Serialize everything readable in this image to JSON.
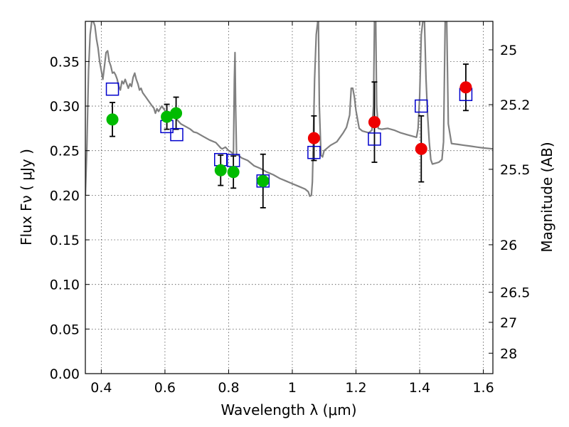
{
  "chart_data": {
    "type": "scatter",
    "title": "",
    "xlabel": "Wavelength  λ (μm)",
    "ylabel": "Flux  Fν  ( μJy )",
    "y2label": "Magnitude (AB)",
    "xlim": [
      0.35,
      1.63
    ],
    "ylim": [
      0.0,
      0.395
    ],
    "grid": true,
    "x_ticks": [
      {
        "value": 0.4,
        "label": "0.4"
      },
      {
        "value": 0.6,
        "label": "0.6"
      },
      {
        "value": 0.8,
        "label": "0.8"
      },
      {
        "value": 1.0,
        "label": "1"
      },
      {
        "value": 1.2,
        "label": "1.2"
      },
      {
        "value": 1.4,
        "label": "1.4"
      },
      {
        "value": 1.6,
        "label": "1.6"
      }
    ],
    "y_ticks": [
      {
        "value": 0.0,
        "label": "0.00"
      },
      {
        "value": 0.05,
        "label": "0.05"
      },
      {
        "value": 0.1,
        "label": "0.10"
      },
      {
        "value": 0.15,
        "label": "0.15"
      },
      {
        "value": 0.2,
        "label": "0.20"
      },
      {
        "value": 0.25,
        "label": "0.25"
      },
      {
        "value": 0.3,
        "label": "0.30"
      },
      {
        "value": 0.35,
        "label": "0.35"
      }
    ],
    "y2_ticks": [
      {
        "flux": 0.3631,
        "label": "25"
      },
      {
        "flux": 0.3016,
        "label": "25.2"
      },
      {
        "flux": 0.2291,
        "label": "25.5"
      },
      {
        "flux": 0.1445,
        "label": "26"
      },
      {
        "flux": 0.0912,
        "label": "26.5"
      },
      {
        "flux": 0.0575,
        "label": "27"
      },
      {
        "flux": 0.0229,
        "label": "28"
      }
    ],
    "series": [
      {
        "kind": "line",
        "color": "#808080",
        "points": [
          [
            0.35,
            0.2
          ],
          [
            0.355,
            0.255
          ],
          [
            0.36,
            0.34
          ],
          [
            0.365,
            0.38
          ],
          [
            0.37,
            0.395
          ],
          [
            0.375,
            0.395
          ],
          [
            0.38,
            0.39
          ],
          [
            0.385,
            0.375
          ],
          [
            0.39,
            0.365
          ],
          [
            0.395,
            0.35
          ],
          [
            0.4,
            0.34
          ],
          [
            0.405,
            0.33
          ],
          [
            0.41,
            0.345
          ],
          [
            0.415,
            0.36
          ],
          [
            0.42,
            0.362
          ],
          [
            0.425,
            0.35
          ],
          [
            0.43,
            0.345
          ],
          [
            0.435,
            0.337
          ],
          [
            0.44,
            0.338
          ],
          [
            0.445,
            0.335
          ],
          [
            0.45,
            0.33
          ],
          [
            0.455,
            0.322
          ],
          [
            0.46,
            0.318
          ],
          [
            0.465,
            0.328
          ],
          [
            0.47,
            0.325
          ],
          [
            0.475,
            0.33
          ],
          [
            0.48,
            0.325
          ],
          [
            0.485,
            0.32
          ],
          [
            0.49,
            0.325
          ],
          [
            0.495,
            0.322
          ],
          [
            0.5,
            0.332
          ],
          [
            0.505,
            0.337
          ],
          [
            0.51,
            0.33
          ],
          [
            0.515,
            0.325
          ],
          [
            0.52,
            0.318
          ],
          [
            0.525,
            0.32
          ],
          [
            0.53,
            0.315
          ],
          [
            0.54,
            0.31
          ],
          [
            0.55,
            0.305
          ],
          [
            0.56,
            0.3
          ],
          [
            0.565,
            0.298
          ],
          [
            0.57,
            0.292
          ],
          [
            0.575,
            0.297
          ],
          [
            0.58,
            0.294
          ],
          [
            0.59,
            0.3
          ],
          [
            0.6,
            0.295
          ],
          [
            0.605,
            0.288
          ],
          [
            0.61,
            0.29
          ],
          [
            0.62,
            0.286
          ],
          [
            0.63,
            0.289
          ],
          [
            0.64,
            0.284
          ],
          [
            0.65,
            0.28
          ],
          [
            0.66,
            0.278
          ],
          [
            0.67,
            0.276
          ],
          [
            0.68,
            0.274
          ],
          [
            0.69,
            0.271
          ],
          [
            0.7,
            0.27
          ],
          [
            0.72,
            0.266
          ],
          [
            0.74,
            0.262
          ],
          [
            0.76,
            0.259
          ],
          [
            0.775,
            0.253
          ],
          [
            0.78,
            0.252
          ],
          [
            0.79,
            0.254
          ],
          [
            0.8,
            0.25
          ],
          [
            0.81,
            0.248
          ],
          [
            0.815,
            0.245
          ],
          [
            0.818,
            0.33
          ],
          [
            0.82,
            0.36
          ],
          [
            0.822,
            0.3
          ],
          [
            0.825,
            0.245
          ],
          [
            0.83,
            0.245
          ],
          [
            0.84,
            0.242
          ],
          [
            0.86,
            0.239
          ],
          [
            0.88,
            0.233
          ],
          [
            0.9,
            0.23
          ],
          [
            0.92,
            0.226
          ],
          [
            0.94,
            0.223
          ],
          [
            0.96,
            0.219
          ],
          [
            0.98,
            0.216
          ],
          [
            1.0,
            0.213
          ],
          [
            1.02,
            0.21
          ],
          [
            1.04,
            0.207
          ],
          [
            1.05,
            0.204
          ],
          [
            1.055,
            0.199
          ],
          [
            1.06,
            0.2
          ],
          [
            1.063,
            0.215
          ],
          [
            1.066,
            0.26
          ],
          [
            1.07,
            0.33
          ],
          [
            1.075,
            0.38
          ],
          [
            1.08,
            0.395
          ],
          [
            1.082,
            0.395
          ],
          [
            1.085,
            0.3
          ],
          [
            1.09,
            0.245
          ],
          [
            1.095,
            0.243
          ],
          [
            1.1,
            0.25
          ],
          [
            1.12,
            0.256
          ],
          [
            1.14,
            0.26
          ],
          [
            1.16,
            0.27
          ],
          [
            1.17,
            0.276
          ],
          [
            1.18,
            0.29
          ],
          [
            1.185,
            0.32
          ],
          [
            1.19,
            0.32
          ],
          [
            1.195,
            0.31
          ],
          [
            1.2,
            0.295
          ],
          [
            1.21,
            0.275
          ],
          [
            1.22,
            0.272
          ],
          [
            1.24,
            0.27
          ],
          [
            1.25,
            0.273
          ],
          [
            1.255,
            0.3
          ],
          [
            1.258,
            0.395
          ],
          [
            1.262,
            0.395
          ],
          [
            1.265,
            0.3
          ],
          [
            1.27,
            0.275
          ],
          [
            1.28,
            0.274
          ],
          [
            1.3,
            0.275
          ],
          [
            1.32,
            0.273
          ],
          [
            1.34,
            0.27
          ],
          [
            1.36,
            0.268
          ],
          [
            1.38,
            0.266
          ],
          [
            1.39,
            0.265
          ],
          [
            1.395,
            0.275
          ],
          [
            1.4,
            0.31
          ],
          [
            1.405,
            0.38
          ],
          [
            1.41,
            0.395
          ],
          [
            1.415,
            0.395
          ],
          [
            1.42,
            0.33
          ],
          [
            1.425,
            0.29
          ],
          [
            1.43,
            0.26
          ],
          [
            1.435,
            0.24
          ],
          [
            1.44,
            0.235
          ],
          [
            1.45,
            0.236
          ],
          [
            1.46,
            0.237
          ],
          [
            1.47,
            0.24
          ],
          [
            1.475,
            0.26
          ],
          [
            1.48,
            0.395
          ],
          [
            1.485,
            0.395
          ],
          [
            1.49,
            0.28
          ],
          [
            1.5,
            0.258
          ],
          [
            1.52,
            0.257
          ],
          [
            1.54,
            0.256
          ],
          [
            1.56,
            0.255
          ],
          [
            1.58,
            0.254
          ],
          [
            1.6,
            0.253
          ],
          [
            1.63,
            0.252
          ]
        ]
      },
      {
        "kind": "squares",
        "color": "#0000cc",
        "points": [
          [
            0.435,
            0.319
          ],
          [
            0.606,
            0.277
          ],
          [
            0.637,
            0.268
          ],
          [
            0.775,
            0.24
          ],
          [
            0.815,
            0.239
          ],
          [
            0.908,
            0.216
          ],
          [
            1.068,
            0.248
          ],
          [
            1.258,
            0.263
          ],
          [
            1.405,
            0.3
          ],
          [
            1.545,
            0.313
          ]
        ]
      },
      {
        "kind": "dots",
        "color": "#00bb00",
        "points": [
          {
            "x": 0.435,
            "y": 0.285,
            "err": 0.019
          },
          {
            "x": 0.606,
            "y": 0.288,
            "err": 0.014
          },
          {
            "x": 0.635,
            "y": 0.292,
            "err": 0.018
          },
          {
            "x": 0.775,
            "y": 0.228,
            "err": 0.017
          },
          {
            "x": 0.815,
            "y": 0.226,
            "err": 0.018
          },
          {
            "x": 0.908,
            "y": 0.216,
            "err": 0.03
          }
        ]
      },
      {
        "kind": "dots",
        "color": "#ee0000",
        "points": [
          {
            "x": 1.068,
            "y": 0.264,
            "err": 0.025
          },
          {
            "x": 1.258,
            "y": 0.282,
            "err": 0.045
          },
          {
            "x": 1.405,
            "y": 0.252,
            "err": 0.037
          },
          {
            "x": 1.545,
            "y": 0.321,
            "err": 0.026
          }
        ]
      }
    ]
  }
}
